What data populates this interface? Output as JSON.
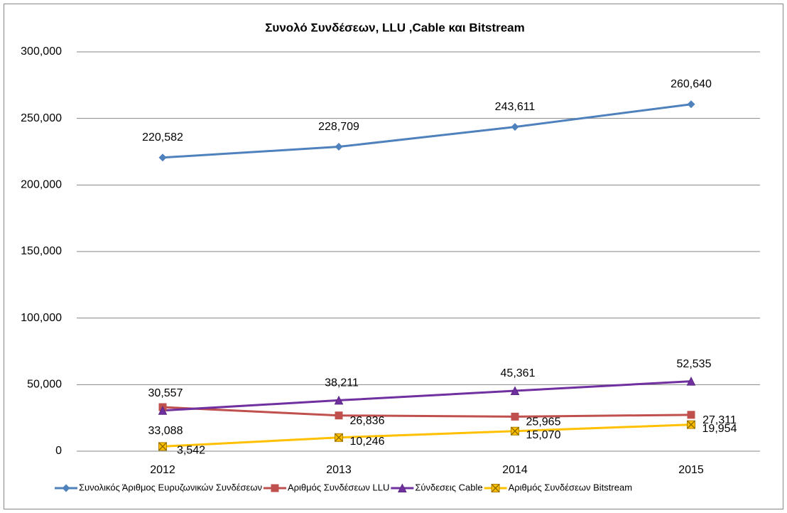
{
  "chart_data": {
    "type": "line",
    "title": "Συνολό Συνδέσεων,  LLU ,Cable και Bitstream",
    "categories": [
      "2012",
      "2013",
      "2014",
      "2015"
    ],
    "series": [
      {
        "name": "Συνολικός Άριθμος Ευρυζωνικών Συνδέσεων",
        "color": "#4f81bd",
        "marker": "diamond",
        "values": [
          220582,
          228709,
          243611,
          260640
        ],
        "value_labels": [
          "220,582",
          "228,709",
          "243,611",
          "260,640"
        ]
      },
      {
        "name": "Αριθμός Συνδέσεων LLU",
        "color": "#c0504d",
        "marker": "square",
        "values": [
          33088,
          26836,
          25965,
          27311
        ],
        "value_labels": [
          "33,088",
          "26,836",
          "25,965",
          "27,311"
        ]
      },
      {
        "name": "Σύνδεσεις Cable",
        "color": "#7030a0",
        "marker": "triangle",
        "values": [
          30557,
          38211,
          45361,
          52535
        ],
        "value_labels": [
          "30,557",
          "38,211",
          "45,361",
          "52,535"
        ]
      },
      {
        "name": "Αριθμός Συνδέσεων Bitstream",
        "color": "#ffc000",
        "marker": "x",
        "values": [
          3542,
          10246,
          15070,
          19954
        ],
        "value_labels": [
          "3,542",
          "10,246",
          "15,070",
          "19,954"
        ]
      }
    ],
    "ylim": [
      0,
      300000
    ],
    "yticks": [
      0,
      {
        "value": 50000,
        "label": "50,000"
      },
      {
        "value": 100000,
        "label": "100,000"
      },
      {
        "value": 150000,
        "label": "150,000"
      },
      {
        "value": 200000,
        "label": "200,000"
      },
      {
        "value": 250000,
        "label": "250,000"
      },
      {
        "value": 300000,
        "label": "300,000"
      }
    ],
    "grid": true,
    "legend": "bottom"
  }
}
